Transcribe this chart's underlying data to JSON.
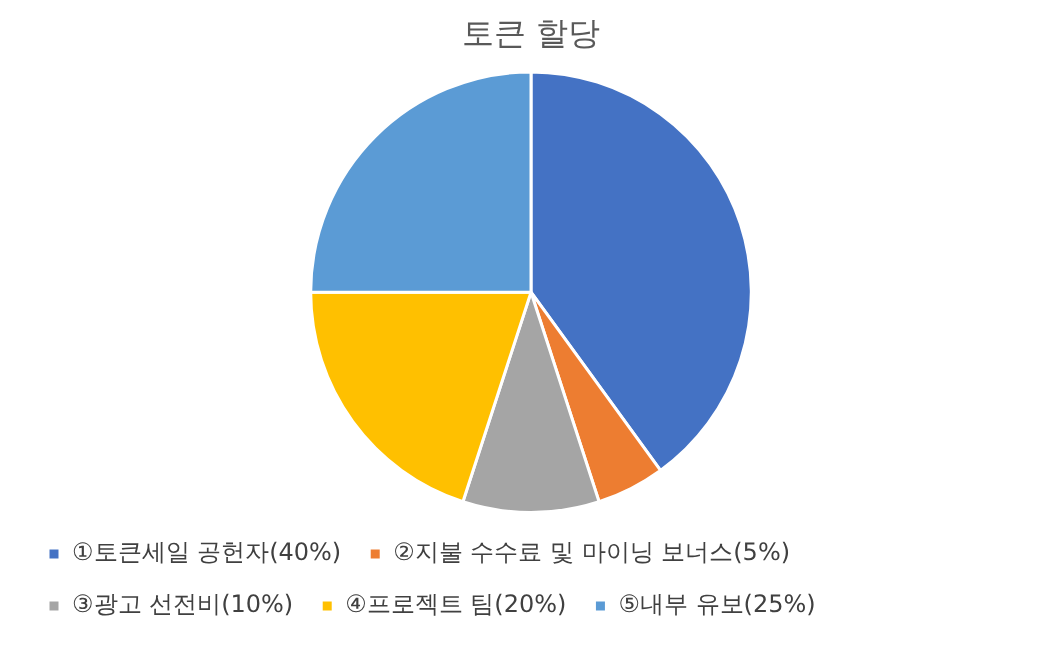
{
  "chart_data": {
    "type": "pie",
    "title": "토큰 할당",
    "categories": [
      "①토큰세일 공헌자(40%)",
      "②지불 수수료 및 마이닝 보너스(5%)",
      "③광고 선전비(10%)",
      "④프로젝트 팀(20%)",
      "⑤내부 유보(25%)"
    ],
    "values": [
      40,
      5,
      10,
      20,
      25
    ],
    "colors": [
      "#4472c4",
      "#ed7d31",
      "#a5a5a5",
      "#ffc000",
      "#5b9bd5"
    ],
    "legend": "bottom"
  }
}
